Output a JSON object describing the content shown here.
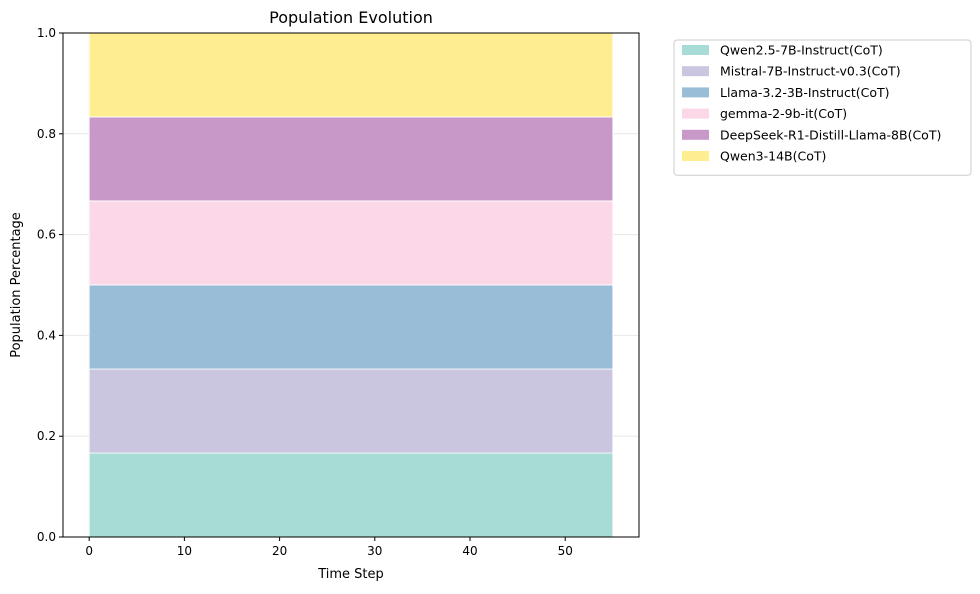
{
  "chart_data": {
    "type": "area",
    "stacked": true,
    "normalized": true,
    "title": "Population Evolution",
    "xlabel": "Time Step",
    "ylabel": "Population Percentage",
    "xlim": [
      -2.75,
      57.75
    ],
    "ylim": [
      0,
      1.0
    ],
    "xticks": [
      0,
      10,
      20,
      30,
      40,
      50
    ],
    "yticks": [
      0.0,
      0.2,
      0.4,
      0.6,
      0.8,
      1.0
    ],
    "ytick_labels": [
      "0.0",
      "0.2",
      "0.4",
      "0.6",
      "0.8",
      "1.0"
    ],
    "grid": true,
    "legend_position": "outside-upper-right",
    "x": [
      0,
      55
    ],
    "series": [
      {
        "name": "Qwen2.5-7B-Instruct(CoT)",
        "values": [
          0.1667,
          0.1667
        ],
        "color": "#a6dcd5"
      },
      {
        "name": "Mistral-7B-Instruct-v0.3(CoT)",
        "values": [
          0.1667,
          0.1667
        ],
        "color": "#cac6e0"
      },
      {
        "name": "Llama-3.2-3B-Instruct(CoT)",
        "values": [
          0.1667,
          0.1667
        ],
        "color": "#9abdd7"
      },
      {
        "name": "gemma-2-9b-it(CoT)",
        "values": [
          0.1667,
          0.1667
        ],
        "color": "#fbd7e7"
      },
      {
        "name": "DeepSeek-R1-Distill-Llama-8B(CoT)",
        "values": [
          0.1667,
          0.1667
        ],
        "color": "#c898c8"
      },
      {
        "name": "Qwen3-14B(CoT)",
        "values": [
          0.1667,
          0.1667
        ],
        "color": "#ffee90"
      }
    ]
  }
}
